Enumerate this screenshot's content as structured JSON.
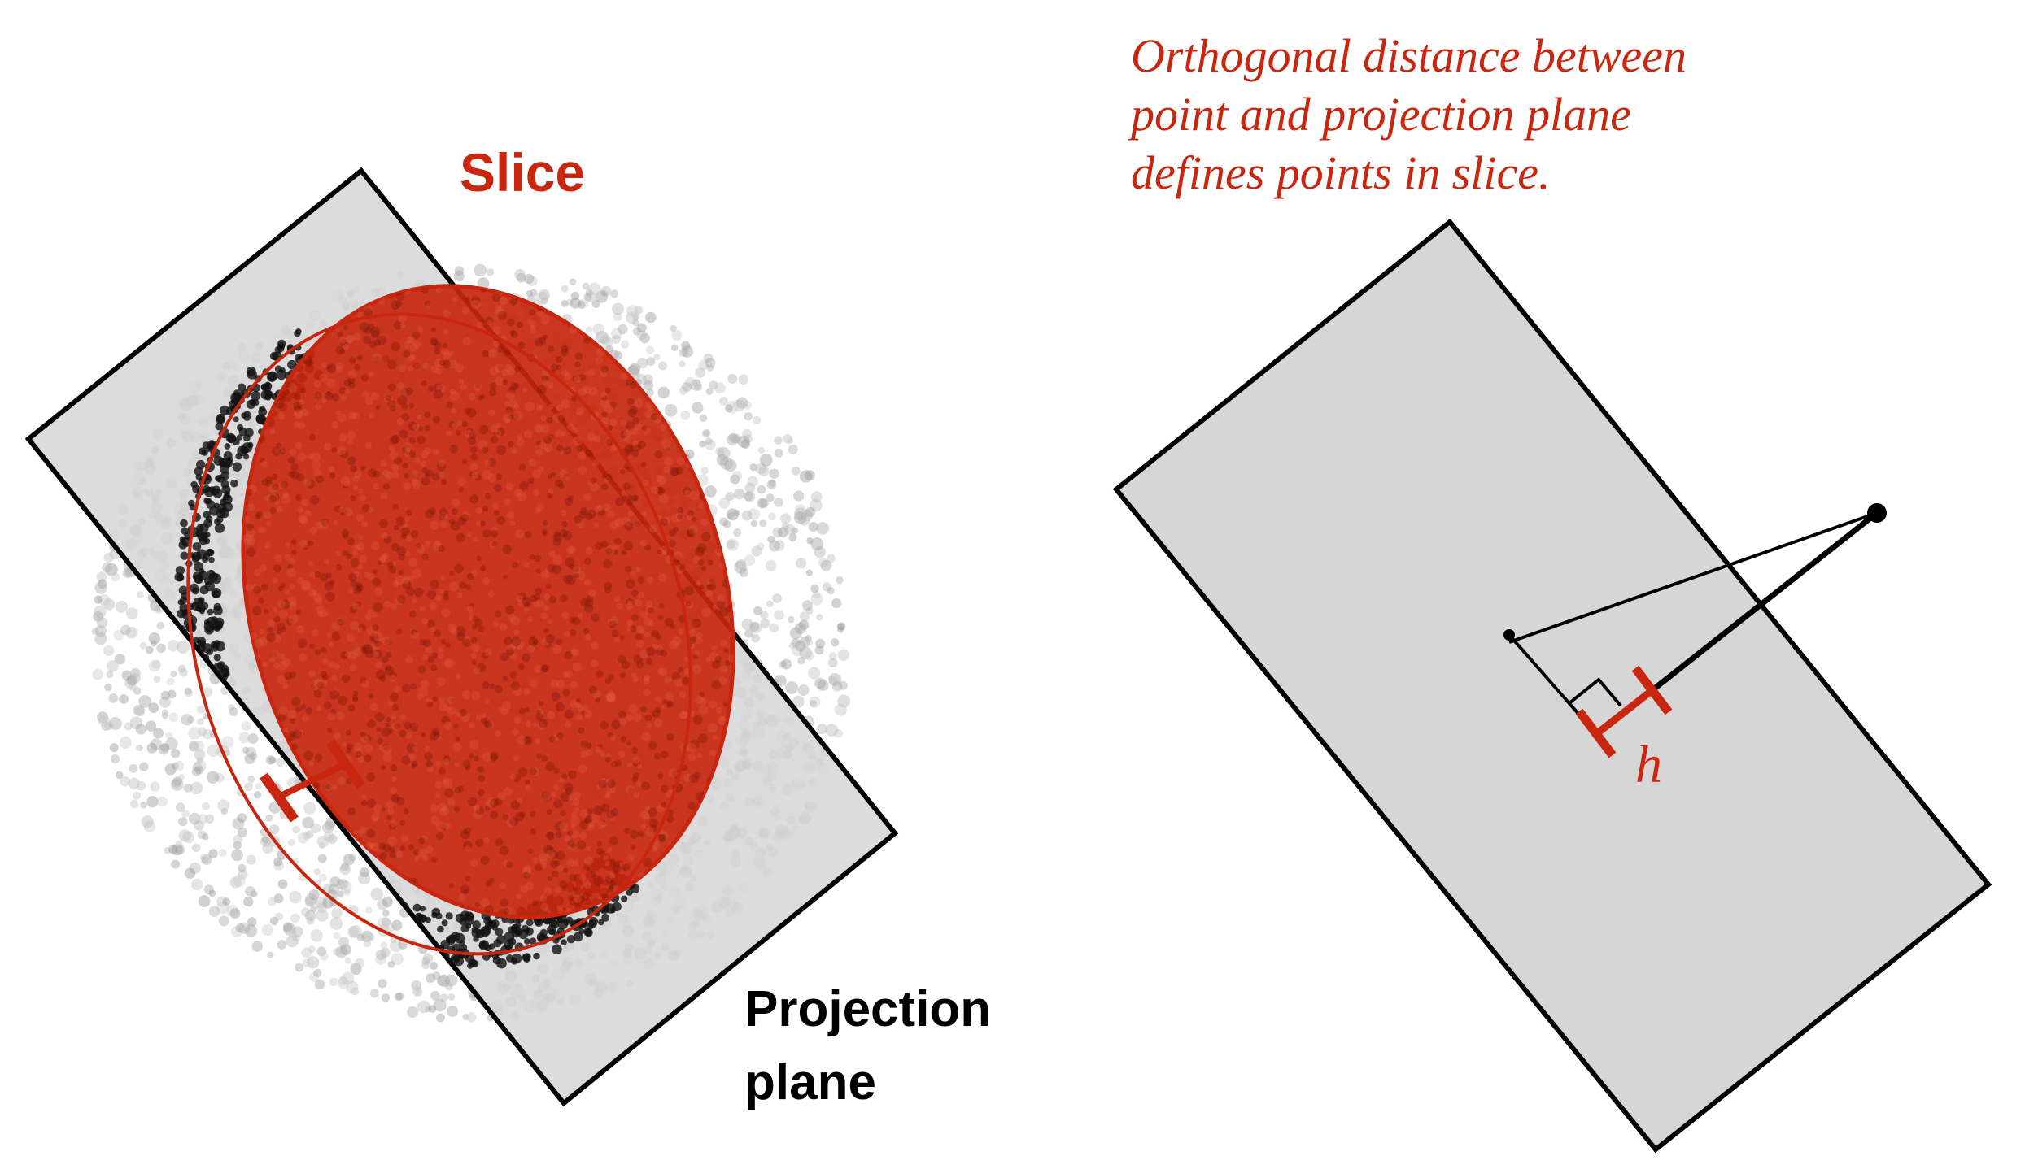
{
  "left_panel": {
    "slice_label": "Slice",
    "projection_label_line1": "Projection",
    "projection_label_line2": "plane"
  },
  "right_panel": {
    "caption_line1": "Orthogonal distance between",
    "caption_line2": "point and projection plane",
    "caption_line3": "defines points in slice.",
    "distance_label": "h"
  },
  "colors": {
    "accent_red": "#c8260e",
    "plane_fill": "#d6d6d6",
    "outline": "#000000",
    "cloud_gray": "#b4b4b4",
    "cloud_dark": "#111111"
  }
}
